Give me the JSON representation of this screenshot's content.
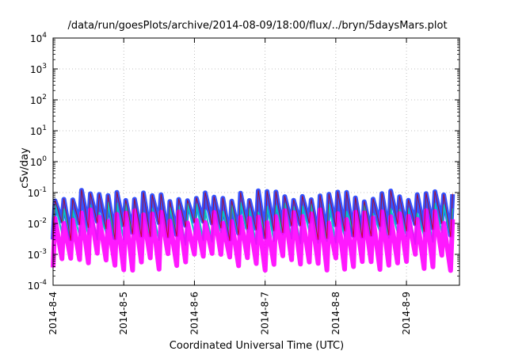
{
  "chart_data": {
    "type": "area",
    "title": "/data/run/goesPlots/archive/2014-08-09/18:00/flux/../bryn/5daysMars.plot",
    "xlabel": "Coordinated Universal Time (UTC)",
    "ylabel": "cSv/day",
    "yscale": "log",
    "ylim": [
      0.0001,
      10000
    ],
    "y_ticks": [
      {
        "value": 0.0001,
        "base": "10",
        "exp": "-4"
      },
      {
        "value": 0.001,
        "base": "10",
        "exp": "-3"
      },
      {
        "value": 0.01,
        "base": "10",
        "exp": "-2"
      },
      {
        "value": 0.1,
        "base": "10",
        "exp": "-1"
      },
      {
        "value": 1,
        "base": "10",
        "exp": "0"
      },
      {
        "value": 10,
        "base": "10",
        "exp": "1"
      },
      {
        "value": 100,
        "base": "10",
        "exp": "2"
      },
      {
        "value": 1000,
        "base": "10",
        "exp": "3"
      },
      {
        "value": 10000,
        "base": "10",
        "exp": "4"
      }
    ],
    "x_ticks": [
      "2014-8-4",
      "2014-8-5",
      "2014-8-6",
      "2014-8-7",
      "2014-8-8",
      "2014-8-9"
    ],
    "x_start": "2014-08-04 00:00",
    "x_end": "2014-08-09 18:00",
    "grid": true,
    "colors": {
      "upper_band": "#1f3fff",
      "lower_band": "#ff00ff",
      "middle": "#00c8c8",
      "edge": "#c00000",
      "grid": "#b0b0b0"
    },
    "series": [
      {
        "color": "#1f3fff",
        "description_values": "peak",
        "cycles_per_day": 8,
        "peak_range": [
          0.05,
          0.12
        ],
        "trough_range": [
          0.003,
          0.012
        ]
      },
      {
        "color": "#00c8c8",
        "cycles_per_day": 8,
        "peak_range": [
          0.02,
          0.05
        ],
        "trough_range": [
          0.002,
          0.006
        ]
      },
      {
        "color": "#ff00ff",
        "cycles_per_day": 8,
        "peak_range": [
          0.01,
          0.03
        ],
        "trough_range": [
          0.0003,
          0.0012
        ]
      }
    ]
  }
}
